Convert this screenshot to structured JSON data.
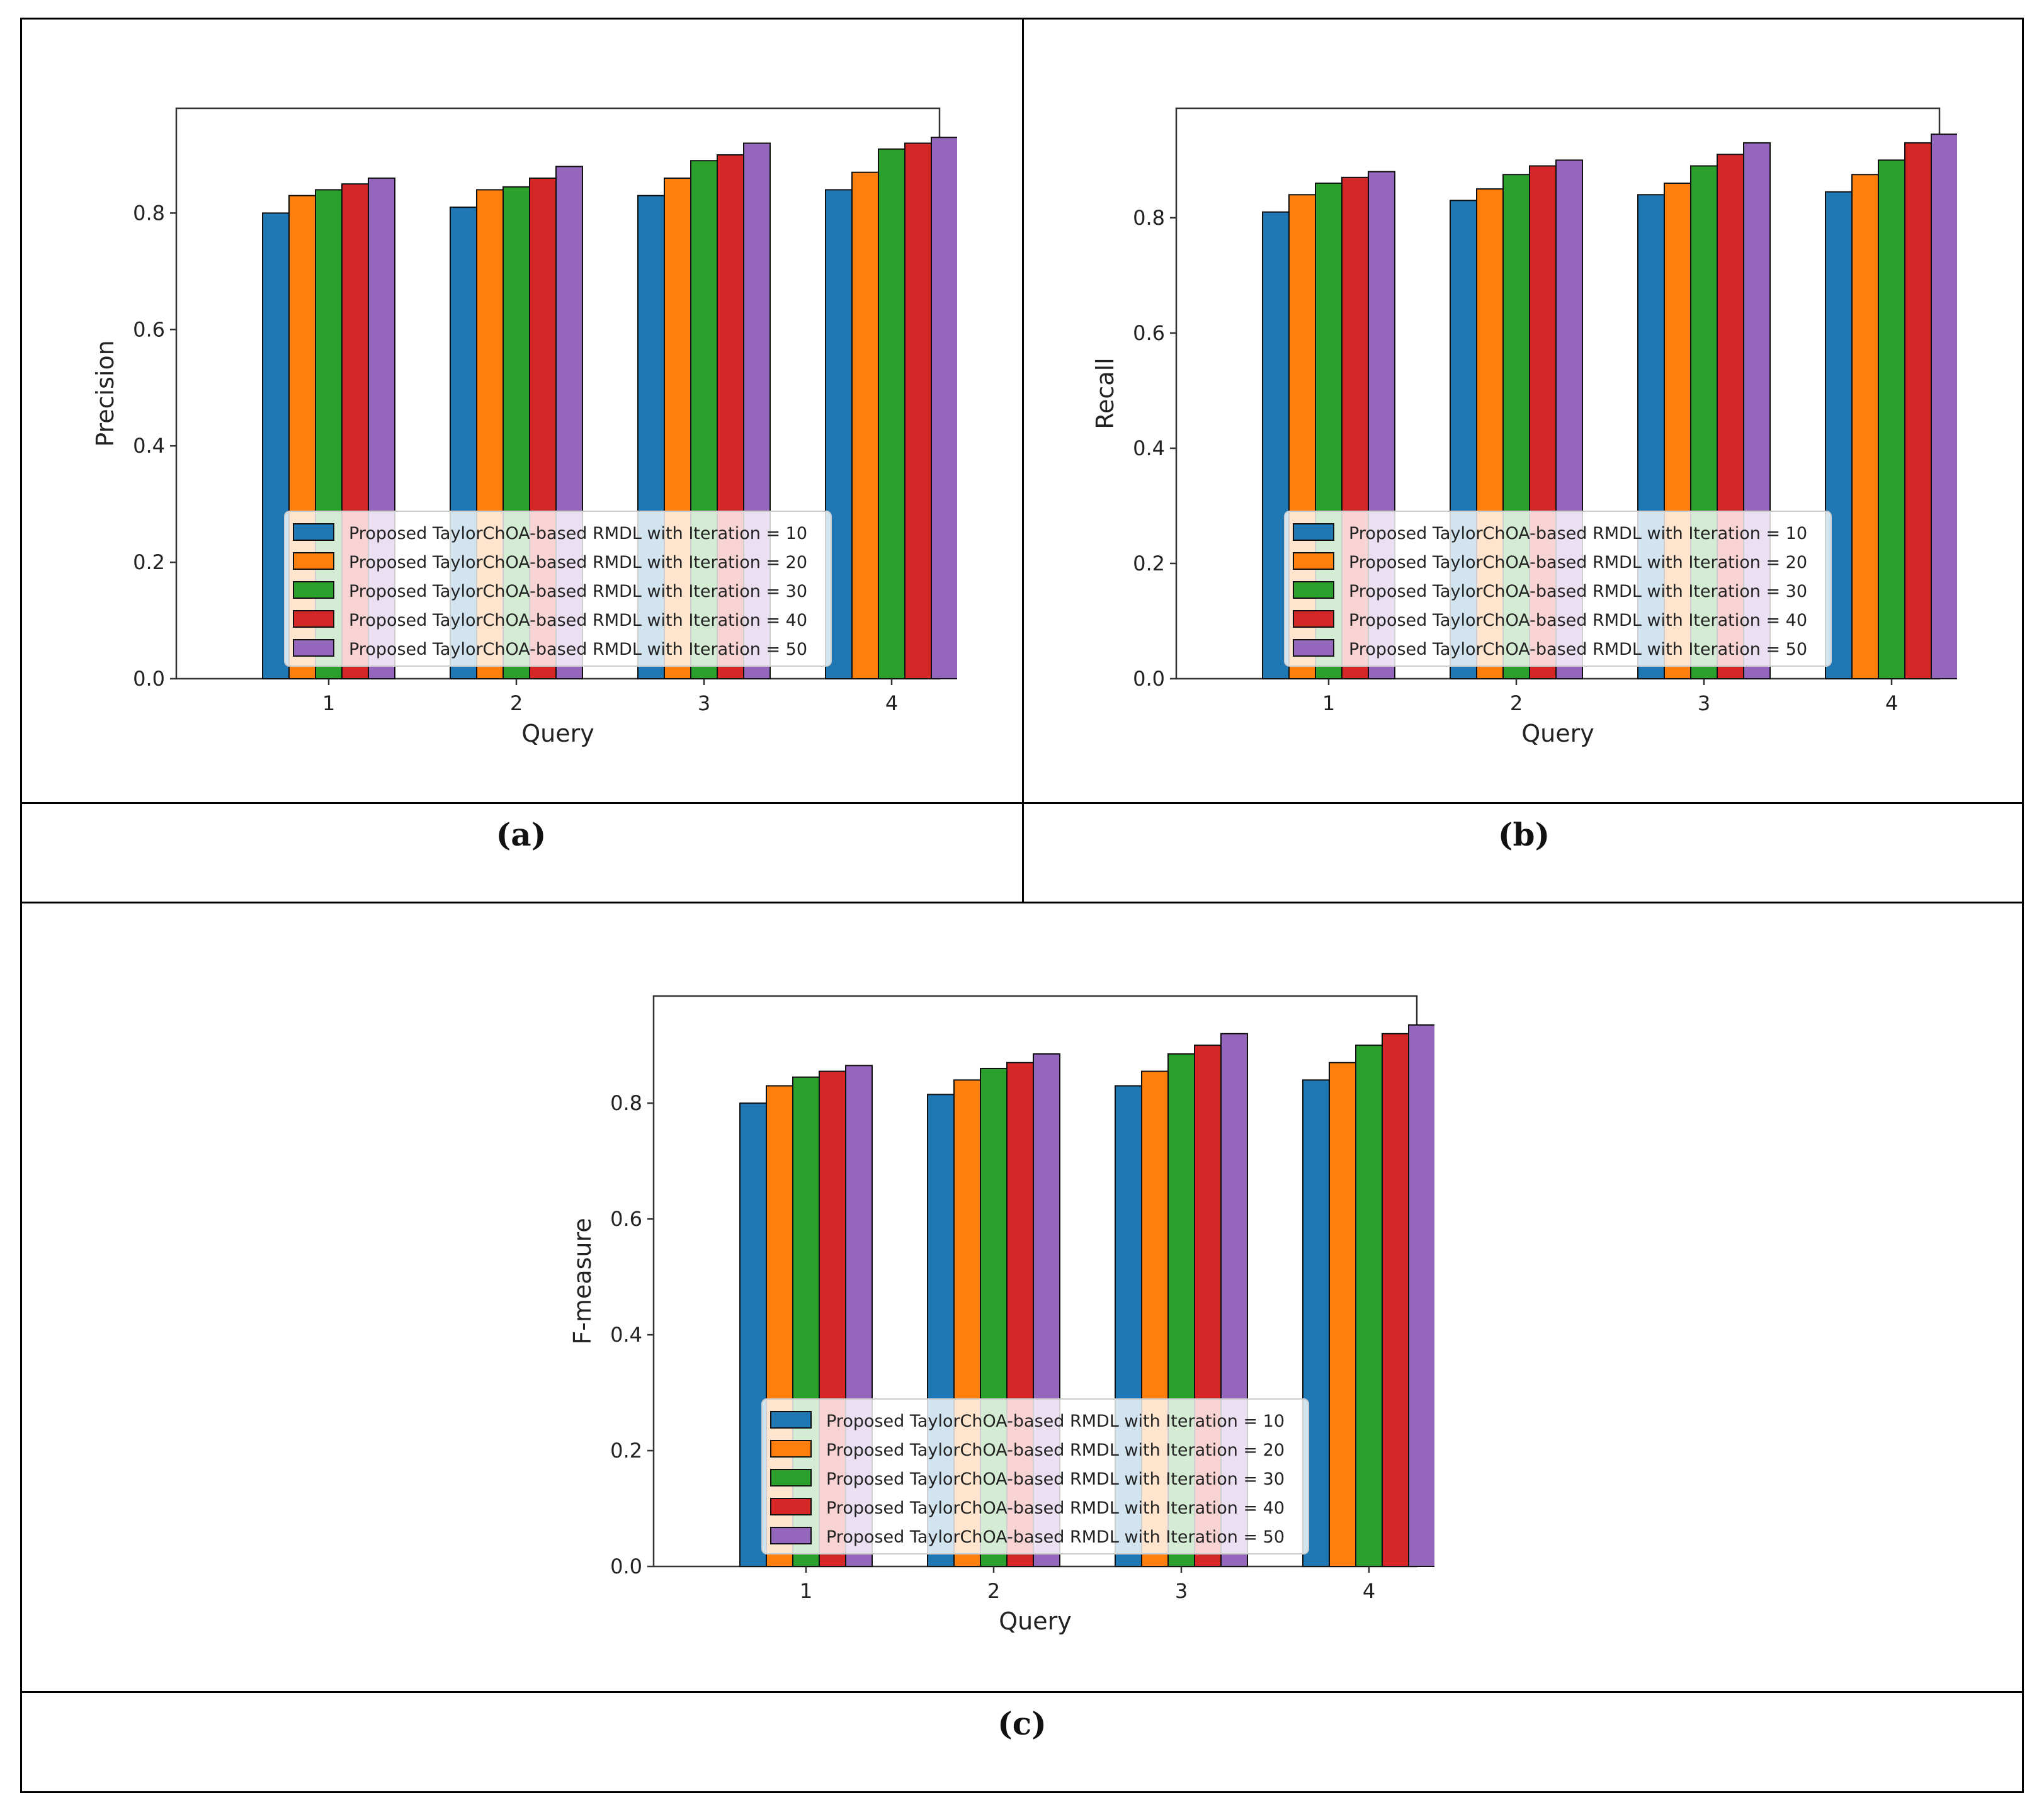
{
  "panels": [
    {
      "caption": "(a)",
      "chart_data": {
        "type": "bar",
        "xlabel": "Query",
        "ylabel": "Precision",
        "categories": [
          "1",
          "2",
          "3",
          "4"
        ],
        "ylim": [
          0,
          0.98
        ],
        "yticks": [
          "0.0",
          "0.2",
          "0.4",
          "0.6",
          "0.8"
        ],
        "legend_position": "lower center",
        "series": [
          {
            "name": "Proposed TaylorChOA-based RMDL with Iteration = 10",
            "color": "#1f77b4",
            "values": [
              0.8,
              0.81,
              0.83,
              0.84
            ]
          },
          {
            "name": "Proposed TaylorChOA-based RMDL with Iteration = 20",
            "color": "#ff7f0e",
            "values": [
              0.83,
              0.84,
              0.86,
              0.87
            ]
          },
          {
            "name": "Proposed TaylorChOA-based RMDL with Iteration = 30",
            "color": "#2ca02c",
            "values": [
              0.84,
              0.845,
              0.89,
              0.91
            ]
          },
          {
            "name": "Proposed TaylorChOA-based RMDL with Iteration = 40",
            "color": "#d62728",
            "values": [
              0.85,
              0.86,
              0.9,
              0.92
            ]
          },
          {
            "name": "Proposed TaylorChOA-based RMDL with Iteration = 50",
            "color": "#9467bd",
            "values": [
              0.86,
              0.88,
              0.92,
              0.93
            ]
          }
        ]
      }
    },
    {
      "caption": "(b)",
      "chart_data": {
        "type": "bar",
        "xlabel": "Query",
        "ylabel": "Recall",
        "categories": [
          "1",
          "2",
          "3",
          "4"
        ],
        "ylim": [
          0,
          0.99
        ],
        "yticks": [
          "0.0",
          "0.2",
          "0.4",
          "0.6",
          "0.8"
        ],
        "legend_position": "lower center",
        "series": [
          {
            "name": "Proposed TaylorChOA-based RMDL with Iteration = 10",
            "color": "#1f77b4",
            "values": [
              0.81,
              0.83,
              0.84,
              0.845
            ]
          },
          {
            "name": "Proposed TaylorChOA-based RMDL with Iteration = 20",
            "color": "#ff7f0e",
            "values": [
              0.84,
              0.85,
              0.86,
              0.875
            ]
          },
          {
            "name": "Proposed TaylorChOA-based RMDL with Iteration = 30",
            "color": "#2ca02c",
            "values": [
              0.86,
              0.875,
              0.89,
              0.9
            ]
          },
          {
            "name": "Proposed TaylorChOA-based RMDL with Iteration = 40",
            "color": "#d62728",
            "values": [
              0.87,
              0.89,
              0.91,
              0.93
            ]
          },
          {
            "name": "Proposed TaylorChOA-based RMDL with Iteration = 50",
            "color": "#9467bd",
            "values": [
              0.88,
              0.9,
              0.93,
              0.945
            ]
          }
        ]
      }
    },
    {
      "caption": "(c)",
      "chart_data": {
        "type": "bar",
        "xlabel": "Query",
        "ylabel": "F-measure",
        "categories": [
          "1",
          "2",
          "3",
          "4"
        ],
        "ylim": [
          0,
          0.985
        ],
        "yticks": [
          "0.0",
          "0.2",
          "0.4",
          "0.6",
          "0.8"
        ],
        "legend_position": "lower center",
        "series": [
          {
            "name": "Proposed TaylorChOA-based RMDL with Iteration = 10",
            "color": "#1f77b4",
            "values": [
              0.8,
              0.815,
              0.83,
              0.84
            ]
          },
          {
            "name": "Proposed TaylorChOA-based RMDL with Iteration = 20",
            "color": "#ff7f0e",
            "values": [
              0.83,
              0.84,
              0.855,
              0.87
            ]
          },
          {
            "name": "Proposed TaylorChOA-based RMDL with Iteration = 30",
            "color": "#2ca02c",
            "values": [
              0.845,
              0.86,
              0.885,
              0.9
            ]
          },
          {
            "name": "Proposed TaylorChOA-based RMDL with Iteration = 40",
            "color": "#d62728",
            "values": [
              0.855,
              0.87,
              0.9,
              0.92
            ]
          },
          {
            "name": "Proposed TaylorChOA-based RMDL with Iteration = 50",
            "color": "#9467bd",
            "values": [
              0.865,
              0.885,
              0.92,
              0.935
            ]
          }
        ]
      }
    }
  ]
}
